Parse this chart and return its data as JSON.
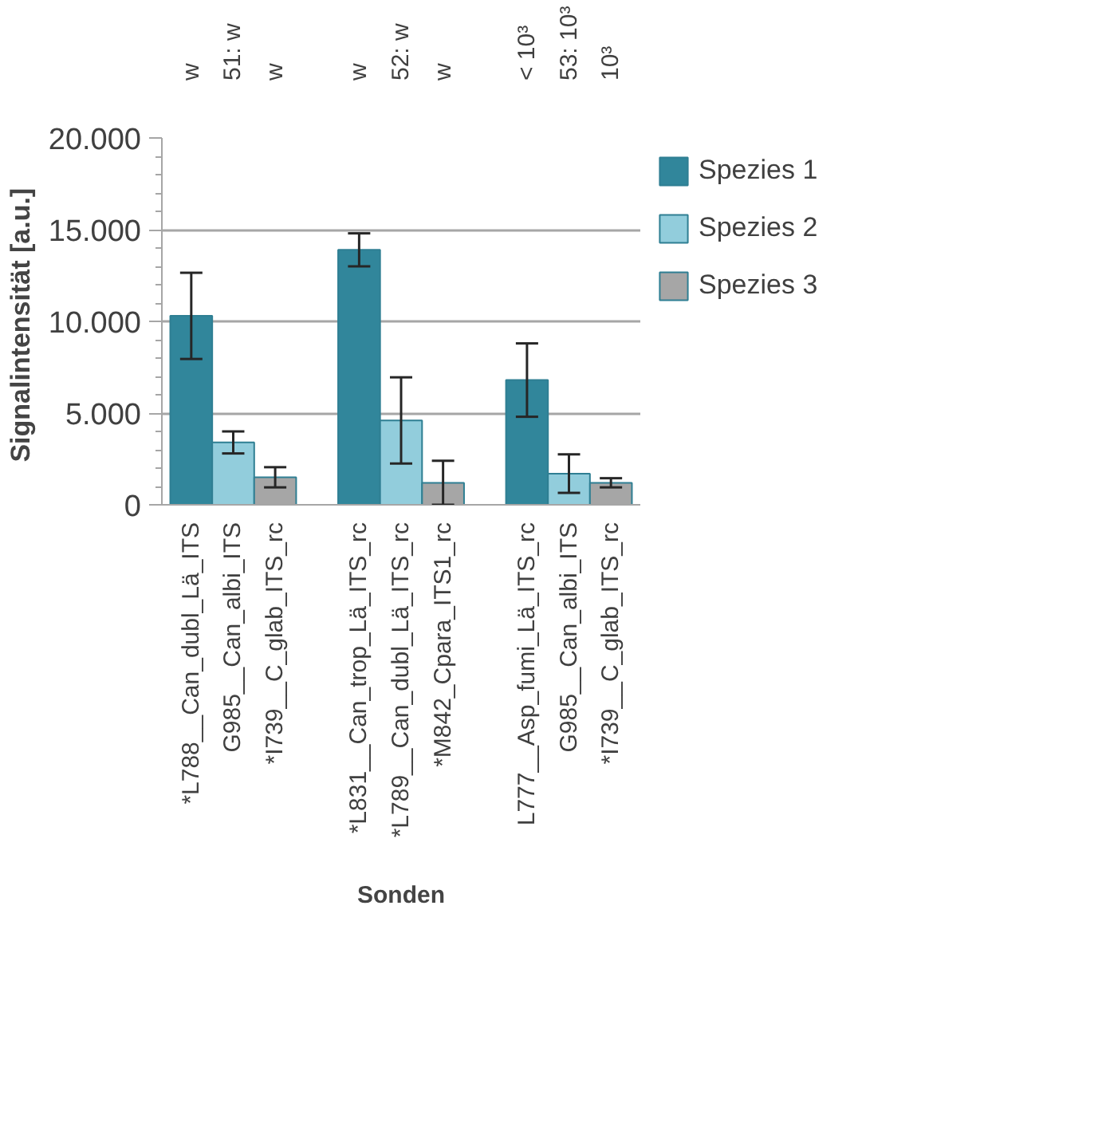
{
  "chart_data": {
    "type": "bar",
    "xlabel": "Sonden",
    "ylabel": "Signalintensität  [a.u.]",
    "categories": [
      "*L788__Can_dubl_Lä_ITS",
      "G985__Can_albi_ITS",
      "*I739__C_glab_ITS_rc",
      null,
      "*L831__Can_trop_Lä_ITS_rc",
      "*L789__Can_dubl_Lä_ITS_rc",
      "*M842_Cpara_ITS1_rc",
      null,
      "L777__Asp_fumi_Lä_ITS_rc",
      "G985__Can_albi_ITS",
      "*I739__C_glab_ITS_rc"
    ],
    "series": [
      {
        "name": "Spezies 1",
        "color": "#31869b",
        "values": [
          10300,
          null,
          null,
          null,
          13900,
          null,
          null,
          null,
          6800,
          null,
          null
        ],
        "errors": [
          2350,
          null,
          null,
          null,
          900,
          null,
          null,
          null,
          2000,
          null,
          null
        ]
      },
      {
        "name": "Spezies 2",
        "color": "#92cddc",
        "values": [
          null,
          3400,
          null,
          null,
          null,
          4600,
          null,
          null,
          null,
          1700,
          null
        ],
        "errors": [
          null,
          600,
          null,
          null,
          null,
          2350,
          null,
          null,
          null,
          1050,
          null
        ]
      },
      {
        "name": "Spezies 3",
        "color": "#a6a6a6",
        "values": [
          null,
          null,
          1500,
          null,
          null,
          null,
          1200,
          null,
          null,
          null,
          1200
        ],
        "errors": [
          null,
          null,
          550,
          null,
          null,
          null,
          1200,
          null,
          null,
          null,
          250
        ]
      }
    ],
    "annotations": [
      "w",
      "51: w",
      "w",
      "w",
      "52: w",
      "w",
      "< 10³",
      "53: 10³",
      "10³"
    ],
    "ylim": [
      0,
      20000
    ],
    "yticks": [
      {
        "value": 0,
        "label": "0"
      },
      {
        "value": 5000,
        "label": "5.000"
      },
      {
        "value": 10000,
        "label": "10.000"
      },
      {
        "value": 15000,
        "label": "15.000"
      },
      {
        "value": 20000,
        "label": "20.000"
      }
    ],
    "grid": "y",
    "legend": "right"
  }
}
